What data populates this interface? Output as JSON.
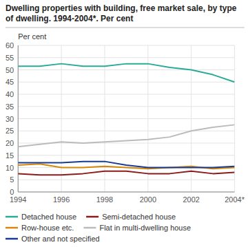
{
  "chart_data": {
    "type": "line",
    "title": "Dwelling properties with building, free market sale, by type of dwelling. 1994-2004*. Per cent",
    "y_label": "Per cent",
    "x": [
      1994,
      1995,
      1996,
      1997,
      1998,
      1999,
      2000,
      2001,
      2002,
      2003,
      2004
    ],
    "series": [
      {
        "name": "Detached house",
        "color": "#2aab99",
        "values": [
          51.5,
          51.5,
          52.5,
          51.5,
          51.5,
          52.5,
          52.5,
          51.0,
          50.0,
          48.0,
          45.0
        ]
      },
      {
        "name": "Semi-detached house",
        "color": "#8b1a1a",
        "values": [
          7.5,
          7.0,
          7.0,
          7.5,
          8.5,
          8.5,
          7.5,
          7.5,
          8.5,
          7.5,
          8.0
        ]
      },
      {
        "name": "Row-house etc.",
        "color": "#d4870a",
        "values": [
          11.0,
          11.5,
          10.0,
          10.0,
          10.5,
          10.0,
          9.5,
          10.0,
          10.5,
          9.5,
          10.0
        ]
      },
      {
        "name": "Flat in multi-dwelling house",
        "color": "#bbbbbb",
        "values": [
          18.5,
          19.5,
          20.5,
          20.0,
          20.5,
          21.0,
          21.5,
          22.5,
          25.0,
          26.5,
          27.5
        ]
      },
      {
        "name": "Other and not specified",
        "color": "#1a3a8f",
        "values": [
          12.0,
          12.0,
          12.0,
          12.5,
          12.5,
          11.0,
          10.0,
          10.0,
          10.0,
          10.0,
          10.5
        ]
      }
    ],
    "xlim": [
      1994,
      2004
    ],
    "xticks": [
      1994,
      1996,
      1998,
      2000,
      2002,
      {
        "value": 2004,
        "label": "2004*"
      }
    ],
    "ylim": [
      0,
      60
    ],
    "yticks": [
      0,
      5,
      10,
      15,
      20,
      25,
      30,
      35,
      40,
      45,
      50,
      55,
      60
    ],
    "grid": true,
    "legend": "bottom"
  }
}
